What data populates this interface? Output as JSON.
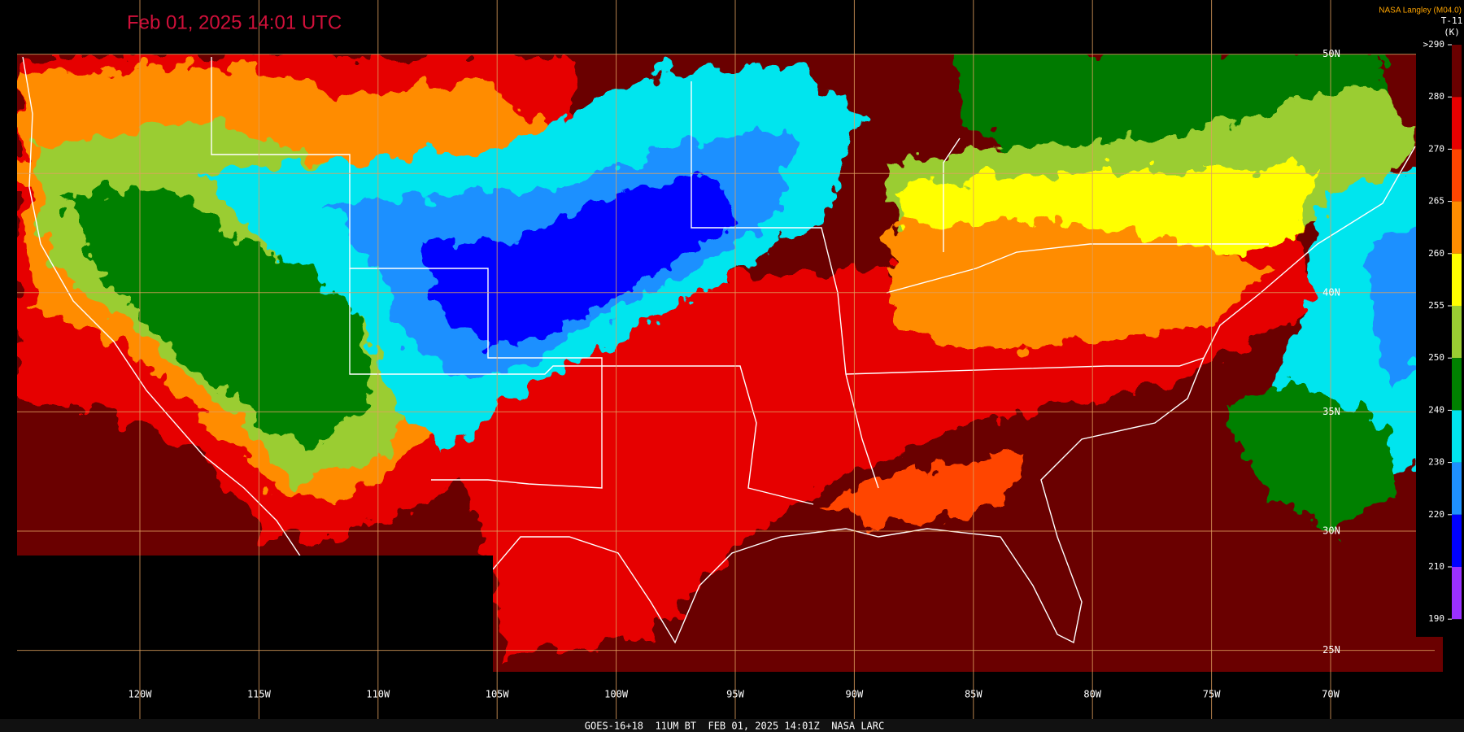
{
  "header": {
    "title": "Feb 01, 2025 14:01 UTC",
    "credit": "NASA Langley (M04.0)"
  },
  "colorbar": {
    "title": "T-11",
    "unit": "(K)",
    "ticks": [
      {
        "value": 290,
        "label": ">290"
      },
      280,
      270,
      265,
      260,
      255,
      250,
      240,
      230,
      220,
      210,
      190
    ],
    "colors": [
      "#6a0000",
      "#e60000",
      "#ff4500",
      "#ff8c00",
      "#ffff00",
      "#9acd32",
      "#008000",
      "#00e5ee",
      "#1e90ff",
      "#0000ff",
      "#9b30ff"
    ]
  },
  "map": {
    "longitude_labels": [
      "120W",
      "115W",
      "110W",
      "105W",
      "100W",
      "95W",
      "90W",
      "85W",
      "80W",
      "75W",
      "70W"
    ],
    "latitude_labels": [
      "50N",
      "40N",
      "35N",
      "30N",
      "25N"
    ]
  },
  "footer": "GOES-16+18  11UM BT  FEB 01, 2025 14:01Z  NASA LARC"
}
